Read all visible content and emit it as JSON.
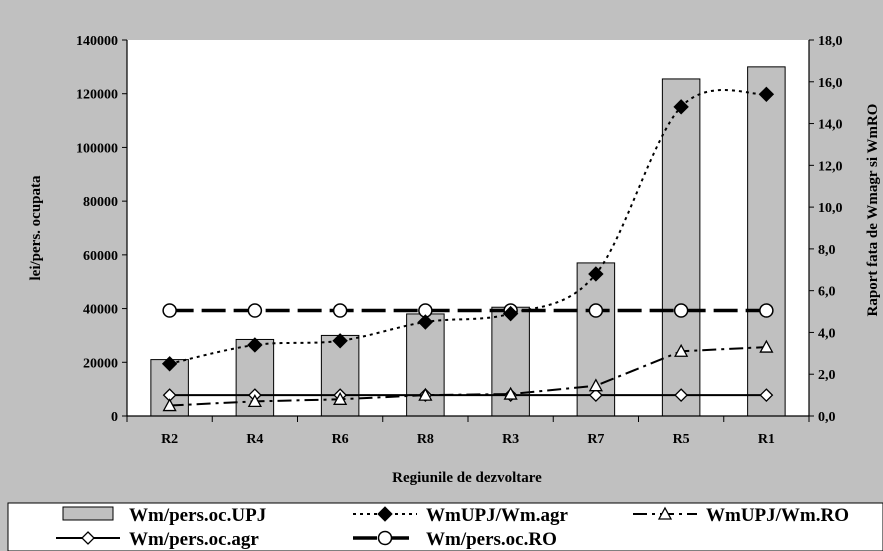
{
  "chart_data": {
    "type": "bar",
    "categories": [
      "R2",
      "R4",
      "R6",
      "R8",
      "R3",
      "R7",
      "R5",
      "R1"
    ],
    "xlabel": "Regiunile de dezvoltare",
    "ylabel": "lei/pers. ocupata",
    "y2label": "Raport fata de Wmagr si WmRO",
    "ylim": [
      0,
      140000
    ],
    "y2lim": [
      0,
      18
    ],
    "yticks": [
      "0",
      "20000",
      "40000",
      "60000",
      "80000",
      "100000",
      "120000",
      "140000"
    ],
    "y2ticks": [
      "0,0",
      "2,0",
      "4,0",
      "6,0",
      "8,0",
      "10,0",
      "12,0",
      "14,0",
      "16,0",
      "18,0"
    ],
    "legend_position": "bottom",
    "grid": false,
    "series": [
      {
        "name": "Wm/pers.oc.UPJ",
        "kind": "bar",
        "axis": "left",
        "color": "#c0c0c0",
        "values": [
          21000,
          28500,
          30000,
          38000,
          40500,
          57000,
          125500,
          130000
        ]
      },
      {
        "name": "WmUPJ/Wm.agr",
        "kind": "line",
        "axis": "right",
        "style": "dotted",
        "marker": "diamond-filled",
        "values": [
          2.5,
          3.4,
          3.6,
          4.5,
          4.9,
          6.8,
          14.8,
          15.4
        ]
      },
      {
        "name": "WmUPJ/Wm.RO",
        "kind": "line",
        "axis": "right",
        "style": "dashdot",
        "marker": "triangle-open",
        "values": [
          0.5,
          0.7,
          0.8,
          1.0,
          1.05,
          1.45,
          3.1,
          3.3
        ]
      },
      {
        "name": "Wm/pers.oc.agr",
        "kind": "line",
        "axis": "right",
        "style": "solid",
        "marker": "diamond-open",
        "values": [
          1.0,
          1.0,
          1.0,
          1.0,
          1.0,
          1.0,
          1.0,
          1.0
        ]
      },
      {
        "name": "Wm/pers.oc.RO",
        "kind": "line",
        "axis": "right",
        "style": "longdash",
        "marker": "circle-open",
        "values": [
          5.05,
          5.05,
          5.05,
          5.05,
          5.05,
          5.05,
          5.05,
          5.05
        ]
      }
    ]
  }
}
